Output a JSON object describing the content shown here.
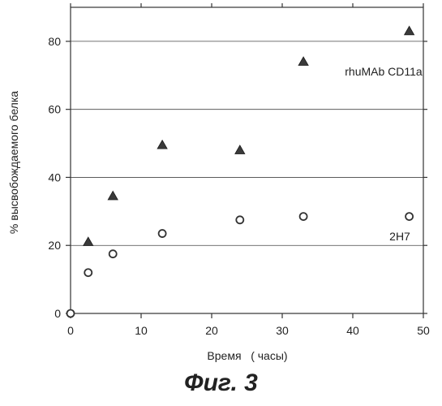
{
  "chart_data": {
    "type": "scatter",
    "xlabel": "Время   ( часы)",
    "ylabel": "% высвобождаемого белка",
    "xlim": [
      0,
      50
    ],
    "ylim": [
      0,
      90
    ],
    "x_ticks": [
      0,
      10,
      20,
      30,
      40,
      50
    ],
    "y_ticks": [
      0,
      20,
      40,
      60,
      80
    ],
    "grid": "horizontal",
    "series": [
      {
        "name": "rhuMAb CD11a",
        "marker": "triangle",
        "color": "#333333",
        "points": [
          [
            2.5,
            21
          ],
          [
            6,
            34.5
          ],
          [
            13,
            49.5
          ],
          [
            24,
            48
          ],
          [
            33,
            74
          ],
          [
            48,
            83
          ]
        ]
      },
      {
        "name": "2H7",
        "marker": "circle-open",
        "color": "#333333",
        "points": [
          [
            0,
            0
          ],
          [
            2.5,
            12
          ],
          [
            6,
            17.5
          ],
          [
            13,
            23.5
          ],
          [
            24,
            27.5
          ],
          [
            33,
            28.5
          ],
          [
            48,
            28.5
          ]
        ]
      }
    ]
  },
  "caption": "Фиг. 3"
}
